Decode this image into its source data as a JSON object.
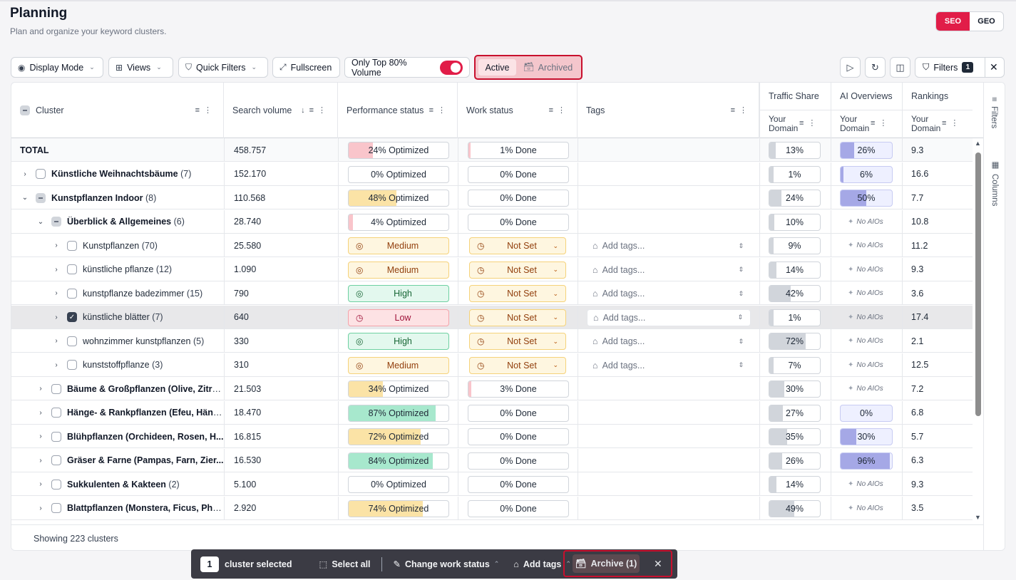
{
  "header": {
    "title": "Planning",
    "subtitle": "Plan and organize your keyword clusters."
  },
  "mode_toggle": {
    "seo": "SEO",
    "geo": "GEO",
    "active": "SEO"
  },
  "toolbar": {
    "display_mode": "Display Mode",
    "views": "Views",
    "quick_filters": "Quick Filters",
    "fullscreen": "Fullscreen",
    "only_top_volume": "Only Top 80% Volume",
    "only_top_volume_on": true,
    "status_active": "Active",
    "status_archived": "Archived",
    "filters": "Filters",
    "filters_count": "1"
  },
  "columns": {
    "cluster": "Cluster",
    "search_volume": "Search volume",
    "performance_status": "Performance status",
    "work_status": "Work status",
    "tags": "Tags",
    "traffic_share": "Traffic Share",
    "ai_overviews": "AI Overviews",
    "rankings": "Rankings",
    "your_domain_1": "Your",
    "your_domain_2": "Domain"
  },
  "side_panel": {
    "filters": "Filters",
    "columns": "Columns"
  },
  "rows": [
    {
      "kind": "total",
      "name": "TOTAL",
      "count": "",
      "volume": "458.757",
      "perf": "24% Optimized",
      "perf_pct": 24,
      "work": "1% Done",
      "work_pct": 1,
      "traffic": "13%",
      "traffic_pct": 13,
      "aio": "26%",
      "aio_pct": 26,
      "rank": "9.3"
    },
    {
      "kind": "group",
      "level": 0,
      "caret": "›",
      "name": "Künstliche Weihnachtsbäume",
      "count": "(7)",
      "volume": "152.170",
      "perf": "0% Optimized",
      "perf_pct": 0,
      "work": "0% Done",
      "work_pct": 0,
      "traffic": "1%",
      "traffic_pct": 1,
      "aio": "6%",
      "aio_pct": 6,
      "rank": "16.6"
    },
    {
      "kind": "group",
      "level": 0,
      "caret": "⌄",
      "cb": "minus",
      "name": "Kunstpflanzen Indoor",
      "count": "(8)",
      "volume": "110.568",
      "perf": "48% Optimized",
      "perf_pct": 48,
      "work": "0% Done",
      "work_pct": 0,
      "traffic": "24%",
      "traffic_pct": 24,
      "aio": "50%",
      "aio_pct": 50,
      "rank": "7.7"
    },
    {
      "kind": "group",
      "level": 1,
      "caret": "⌄",
      "cb": "minus",
      "name": "Überblick & Allgemeines",
      "count": "(6)",
      "volume": "28.740",
      "perf": "4% Optimized",
      "perf_pct": 4,
      "work": "0% Done",
      "work_pct": 0,
      "traffic": "10%",
      "traffic_pct": 10,
      "aio": "No AIOs",
      "rank": "10.8"
    },
    {
      "kind": "leaf",
      "name": "Kunstpflanzen",
      "count": "(70)",
      "volume": "25.580",
      "perf_level": "Medium",
      "work_state": "Not Set",
      "tags": "Add tags...",
      "traffic": "9%",
      "traffic_pct": 9,
      "aio": "No AIOs",
      "rank": "11.2"
    },
    {
      "kind": "leaf",
      "name": "künstliche pflanze",
      "count": "(12)",
      "volume": "1.090",
      "perf_level": "Medium",
      "work_state": "Not Set",
      "tags": "Add tags...",
      "traffic": "14%",
      "traffic_pct": 14,
      "aio": "No AIOs",
      "rank": "9.3"
    },
    {
      "kind": "leaf",
      "name": "kunstpflanze badezimmer",
      "count": "(15)",
      "volume": "790",
      "perf_level": "High",
      "work_state": "Not Set",
      "tags": "Add tags...",
      "traffic": "42%",
      "traffic_pct": 42,
      "aio": "No AIOs",
      "rank": "3.6"
    },
    {
      "kind": "leaf",
      "selected": true,
      "name": "künstliche blätter",
      "count": "(7)",
      "volume": "640",
      "perf_level": "Low",
      "work_state": "Not Set",
      "tags": "Add tags...",
      "traffic": "1%",
      "traffic_pct": 1,
      "aio": "No AIOs",
      "rank": "17.4"
    },
    {
      "kind": "leaf",
      "name": "wohnzimmer kunstpflanzen",
      "count": "(5)",
      "volume": "330",
      "perf_level": "High",
      "work_state": "Not Set",
      "tags": "Add tags...",
      "traffic": "72%",
      "traffic_pct": 72,
      "aio": "No AIOs",
      "rank": "2.1"
    },
    {
      "kind": "leaf",
      "name": "kunststoffpflanze",
      "count": "(3)",
      "volume": "310",
      "perf_level": "Medium",
      "work_state": "Not Set",
      "tags": "Add tags...",
      "traffic": "7%",
      "traffic_pct": 7,
      "aio": "No AIOs",
      "rank": "12.5"
    },
    {
      "kind": "group",
      "level": 1,
      "caret": "›",
      "name": "Bäume & Großpflanzen (Olive, Zitru...",
      "count": "",
      "volume": "21.503",
      "perf": "34% Optimized",
      "perf_pct": 34,
      "work": "3% Done",
      "work_pct": 3,
      "traffic": "30%",
      "traffic_pct": 30,
      "aio": "No AIOs",
      "rank": "7.2"
    },
    {
      "kind": "group",
      "level": 1,
      "caret": "›",
      "name": "Hänge- & Rankpflanzen (Efeu, Häng...",
      "count": "",
      "volume": "18.470",
      "perf": "87% Optimized",
      "perf_pct": 87,
      "work": "0% Done",
      "work_pct": 0,
      "traffic": "27%",
      "traffic_pct": 27,
      "aio": "0%",
      "aio_pct": 0,
      "rank": "6.8"
    },
    {
      "kind": "group",
      "level": 1,
      "caret": "›",
      "name": "Blühpflanzen (Orchideen, Rosen, H...",
      "count": "",
      "volume": "16.815",
      "perf": "72% Optimized",
      "perf_pct": 72,
      "work": "0% Done",
      "work_pct": 0,
      "traffic": "35%",
      "traffic_pct": 35,
      "aio": "30%",
      "aio_pct": 30,
      "rank": "5.7"
    },
    {
      "kind": "group",
      "level": 1,
      "caret": "›",
      "name": "Gräser & Farne (Pampas, Farn, Zier...",
      "count": "",
      "volume": "16.530",
      "perf": "84% Optimized",
      "perf_pct": 84,
      "work": "0% Done",
      "work_pct": 0,
      "traffic": "26%",
      "traffic_pct": 26,
      "aio": "96%",
      "aio_pct": 96,
      "rank": "6.3"
    },
    {
      "kind": "group",
      "level": 1,
      "caret": "›",
      "name": "Sukkulenten & Kakteen",
      "count": "(2)",
      "volume": "5.100",
      "perf": "0% Optimized",
      "perf_pct": 0,
      "work": "0% Done",
      "work_pct": 0,
      "traffic": "14%",
      "traffic_pct": 14,
      "aio": "No AIOs",
      "rank": "9.3"
    },
    {
      "kind": "group",
      "level": 1,
      "caret": "›",
      "name": "Blattpflanzen (Monstera, Ficus, Phil...",
      "count": "",
      "volume": "2.920",
      "perf": "74% Optimized",
      "perf_pct": 74,
      "work": "0% Done",
      "work_pct": 0,
      "traffic": "49%",
      "traffic_pct": 49,
      "aio": "No AIOs",
      "rank": "3.5"
    }
  ],
  "footer": {
    "showing": "Showing 223 clusters"
  },
  "action_bar": {
    "selected_count": "1",
    "selected_label": "cluster selected",
    "select_all": "Select all",
    "change_work_status": "Change work status",
    "add_tags": "Add tags",
    "archive": "Archive (1)"
  },
  "colors": {
    "accent": "#e11d48",
    "highlight_border": "#c8102e",
    "high": "#a7e8cd",
    "medium": "#fbe3a6",
    "low": "#f9c5cb",
    "aio": "#a5a8e6",
    "traffic": "#d1d5db"
  }
}
